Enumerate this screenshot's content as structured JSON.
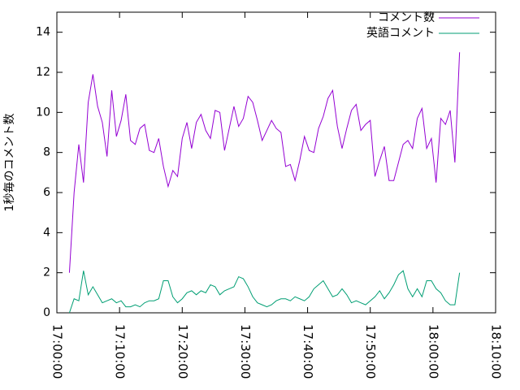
{
  "chart_data": {
    "type": "line",
    "ylabel": "1秒毎のコメント数",
    "x": [
      2,
      2.75,
      3.5,
      4.25,
      5,
      5.75,
      6.5,
      7.25,
      8,
      8.75,
      9.5,
      10.25,
      11,
      11.75,
      12.5,
      13.25,
      14,
      14.75,
      15.5,
      16.25,
      17,
      17.75,
      18.5,
      19.25,
      20,
      20.75,
      21.5,
      22.25,
      23,
      23.75,
      24.5,
      25.25,
      26,
      26.75,
      27.5,
      28.25,
      29,
      29.75,
      30.5,
      31.25,
      32,
      32.75,
      33.5,
      34.25,
      35,
      35.75,
      36.5,
      37.25,
      38,
      38.75,
      39.5,
      40.25,
      41,
      41.75,
      42.5,
      43.25,
      44,
      44.75,
      45.5,
      46.25,
      47,
      47.75,
      48.5,
      49.25,
      50,
      50.75,
      51.5,
      52.25,
      53,
      53.75,
      54.5,
      55.25,
      56,
      56.75,
      57.5,
      58.25,
      59,
      59.75,
      60.5,
      61.25,
      62,
      62.75,
      63.5,
      64.25
    ],
    "series": [
      {
        "name": "コメント数",
        "color": "#9400d3",
        "values": [
          2.0,
          6.0,
          8.4,
          6.5,
          10.5,
          11.9,
          10.3,
          9.5,
          7.8,
          11.1,
          8.8,
          9.6,
          10.9,
          8.6,
          8.4,
          9.2,
          9.4,
          8.1,
          8.0,
          8.7,
          7.3,
          6.3,
          7.1,
          6.8,
          8.7,
          9.5,
          8.2,
          9.5,
          9.9,
          9.1,
          8.7,
          10.1,
          10.0,
          8.1,
          9.2,
          10.3,
          9.3,
          9.7,
          10.8,
          10.5,
          9.6,
          8.6,
          9.1,
          9.6,
          9.2,
          9.0,
          7.3,
          7.4,
          6.6,
          7.6,
          8.8,
          8.1,
          8.0,
          9.2,
          9.8,
          10.7,
          11.1,
          9.3,
          8.2,
          9.2,
          10.1,
          10.4,
          9.1,
          9.4,
          9.6,
          6.8,
          7.6,
          8.3,
          6.6,
          6.6,
          7.5,
          8.4,
          8.6,
          8.2,
          9.7,
          10.2,
          8.2,
          8.7,
          6.5,
          9.7,
          9.4,
          10.1,
          7.5,
          13.0
        ]
      },
      {
        "name": "英語コメント",
        "color": "#009e73",
        "values": [
          0,
          0.7,
          0.6,
          2.1,
          0.9,
          1.3,
          0.9,
          0.5,
          0.6,
          0.7,
          0.5,
          0.6,
          0.3,
          0.3,
          0.4,
          0.3,
          0.5,
          0.6,
          0.6,
          0.7,
          1.6,
          1.6,
          0.8,
          0.5,
          0.7,
          1.0,
          1.1,
          0.9,
          1.1,
          1.0,
          1.4,
          1.3,
          0.9,
          1.1,
          1.2,
          1.3,
          1.8,
          1.7,
          1.3,
          0.8,
          0.5,
          0.4,
          0.3,
          0.4,
          0.6,
          0.7,
          0.7,
          0.6,
          0.8,
          0.7,
          0.6,
          0.8,
          1.2,
          1.4,
          1.6,
          1.2,
          0.8,
          0.9,
          1.2,
          0.9,
          0.5,
          0.6,
          0.5,
          0.4,
          0.6,
          0.8,
          1.1,
          0.7,
          1.0,
          1.4,
          1.9,
          2.1,
          1.2,
          0.8,
          1.2,
          0.8,
          1.6,
          1.6,
          1.2,
          1.0,
          0.6,
          0.4,
          0.4,
          2.0
        ]
      }
    ],
    "xlim": [
      0,
      70
    ],
    "xticks": [
      {
        "value": 0,
        "label": "17:00:00"
      },
      {
        "value": 10,
        "label": "17:10:00"
      },
      {
        "value": 20,
        "label": "17:20:00"
      },
      {
        "value": 30,
        "label": "17:30:00"
      },
      {
        "value": 40,
        "label": "17:40:00"
      },
      {
        "value": 50,
        "label": "17:50:00"
      },
      {
        "value": 60,
        "label": "18:00:00"
      },
      {
        "value": 70,
        "label": "18:10:00"
      }
    ],
    "ylim": [
      0,
      15
    ],
    "yticks": [
      0,
      2,
      4,
      6,
      8,
      10,
      12,
      14
    ],
    "legend": "top-right"
  }
}
